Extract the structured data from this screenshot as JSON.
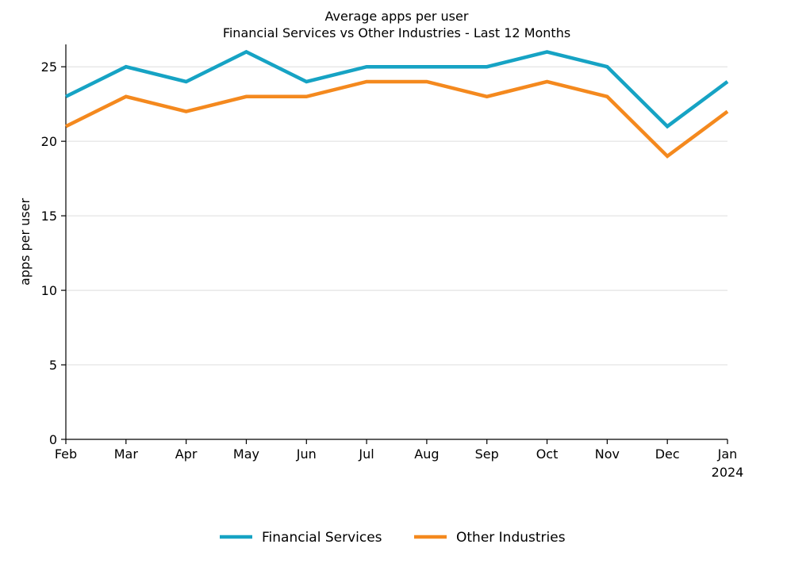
{
  "chart_data": {
    "type": "line",
    "title": "Average apps per user",
    "subtitle": "Financial Services vs Other Industries - Last 12 Months",
    "xlabel": "",
    "ylabel": "apps per user",
    "categories": [
      "Feb",
      "Mar",
      "Apr",
      "May",
      "Jun",
      "Jul",
      "Aug",
      "Sep",
      "Oct",
      "Nov",
      "Dec",
      "Jan"
    ],
    "x_year_label": "2024",
    "ylim": [
      0,
      26.5
    ],
    "yticks": [
      0,
      5,
      10,
      15,
      20,
      25
    ],
    "grid": "horizontal",
    "legend_position": "bottom-center",
    "series": [
      {
        "name": "Financial Services",
        "color": "#16a3c4",
        "values": [
          23,
          25,
          24,
          26,
          24,
          25,
          25,
          25,
          26,
          25,
          21,
          24
        ]
      },
      {
        "name": "Other Industries",
        "color": "#f4891e",
        "values": [
          21,
          23,
          22,
          23,
          23,
          24,
          24,
          23,
          24,
          23,
          19,
          22
        ]
      }
    ]
  }
}
